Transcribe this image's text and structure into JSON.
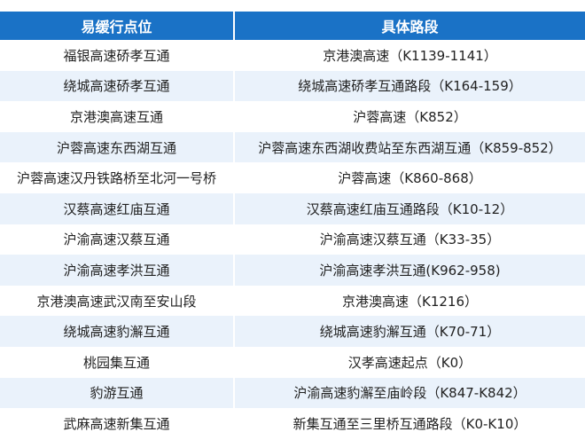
{
  "table": {
    "headers": [
      "易缓行点位",
      "具体路段"
    ],
    "rows": [
      [
        "福银高速硚孝互通",
        "京港澳高速（K1139-1141）"
      ],
      [
        "绕城高速硚孝互通",
        "绕城高速硚孝互通路段（K164-159）"
      ],
      [
        "京港澳高速互通",
        "沪蓉高速（K852）"
      ],
      [
        "沪蓉高速东西湖互通",
        "沪蓉高速东西湖收费站至东西湖互通（K859-852）"
      ],
      [
        "沪蓉高速汉丹铁路桥至北河一号桥",
        "沪蓉高速（K860-868）"
      ],
      [
        "汉蔡高速红庙互通",
        "汉蔡高速红庙互通路段（K10-12）"
      ],
      [
        "沪渝高速汉蔡互通",
        "沪渝高速汉蔡互通（K33-35）"
      ],
      [
        "沪渝高速孝洪互通",
        "沪渝高速孝洪互通(K962-958)"
      ],
      [
        "京港澳高速武汉南至安山段",
        "京港澳高速（K1216）"
      ],
      [
        "绕城高速豹澥互通",
        "绕城高速豹澥互通（K70-71）"
      ],
      [
        "桃园集互通",
        "汉孝高速起点（K0）"
      ],
      [
        "豹游互通",
        "沪渝高速豹澥至庙岭段（K847-K842）"
      ],
      [
        "武麻高速新集互通",
        "新集互通至三里桥互通路段（K0-K10）"
      ]
    ],
    "colors": {
      "header": "#1a72c6",
      "alt_row": "#eaf2fb"
    }
  }
}
